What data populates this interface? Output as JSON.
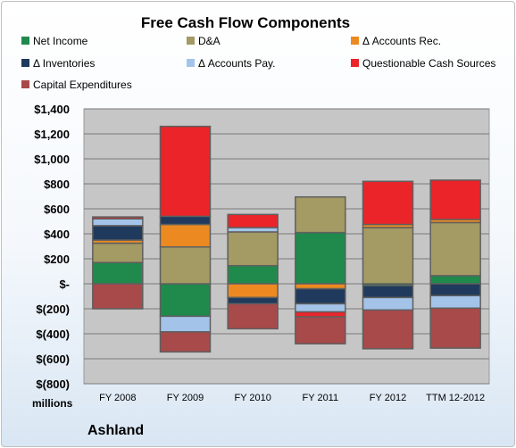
{
  "chart_data": {
    "type": "bar",
    "stacked": true,
    "title": "Free Cash Flow Components",
    "unit_label": "millions",
    "company": "Ashland",
    "categories": [
      "FY 2008",
      "FY 2009",
      "FY 2010",
      "FY 2011",
      "FY 2012",
      "TTM 12-2012"
    ],
    "ylim": [
      -800,
      1400
    ],
    "y_ticks": [
      -800,
      -600,
      -400,
      -200,
      0,
      200,
      400,
      600,
      800,
      1000,
      1200,
      1400
    ],
    "y_tick_labels": [
      "$(800)",
      "$(600)",
      "$(400)",
      "$(200)",
      "$-",
      "$200",
      "$400",
      "$600",
      "$800",
      "$1,000",
      "$1,200",
      "$1,400"
    ],
    "grid": true,
    "legend_position": "top",
    "series": [
      {
        "name": "Net Income",
        "color": "#1f8a4c",
        "values": [
          170,
          -260,
          145,
          410,
          -15,
          65
        ]
      },
      {
        "name": "D&A",
        "color": "#a39a64",
        "values": [
          155,
          295,
          270,
          285,
          450,
          425
        ]
      },
      {
        "name": "Δ Accounts Rec.",
        "color": "#ec8a21",
        "values": [
          25,
          180,
          -110,
          -40,
          25,
          25
        ]
      },
      {
        "name": "Δ Inventories",
        "color": "#1f3a5c",
        "values": [
          115,
          65,
          -50,
          -120,
          -95,
          -95
        ]
      },
      {
        "name": "Δ Accounts Pay.",
        "color": "#a4c3e8",
        "values": [
          55,
          -125,
          35,
          -65,
          -100,
          -100
        ]
      },
      {
        "name": "Questionable Cash Sources",
        "color": "#ea2428",
        "values": [
          15,
          720,
          105,
          -40,
          345,
          315
        ]
      },
      {
        "name": "Capital Expenditures",
        "color": "#a8494a",
        "values": [
          -200,
          -160,
          -200,
          -215,
          -310,
          -320
        ]
      }
    ]
  }
}
